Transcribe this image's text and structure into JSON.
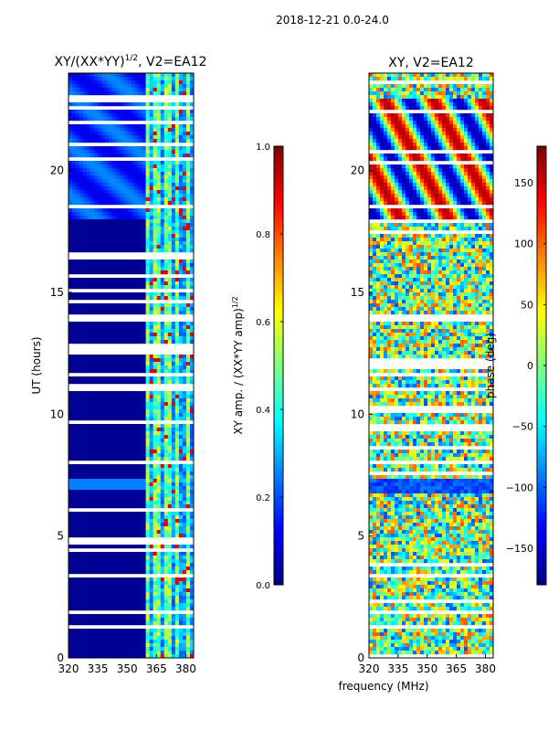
{
  "figure_title": "2018-12-21 0.0-24.0",
  "shared_xlabel": "frequency (MHz)",
  "colors": {
    "jet": [
      "#00007f",
      "#0000ff",
      "#007fff",
      "#00ffff",
      "#7fff7f",
      "#ffff00",
      "#ff7f00",
      "#ff0000",
      "#7f0000"
    ]
  },
  "chart_data": [
    {
      "type": "heatmap",
      "title": "XY/(XX*YY)",
      "title_exponent": "1/2",
      "title_suffix": ", V2=EA12",
      "xlabel": "",
      "ylabel": "UT (hours)",
      "x_ticks": [
        320,
        335,
        350,
        365,
        380
      ],
      "x_tick_labels": [
        "320",
        "335",
        "350",
        "365",
        "380"
      ],
      "xlim": [
        320,
        384
      ],
      "y_ticks": [
        0,
        5,
        10,
        15,
        20
      ],
      "y_tick_labels": [
        "0",
        "5",
        "10",
        "15",
        "20"
      ],
      "ylim": [
        0,
        24
      ],
      "colorbar": {
        "label": "XY amp. / (XX*YY amp)",
        "label_exponent": "1/2",
        "range": [
          0.0,
          1.0
        ],
        "ticks": [
          0.0,
          0.2,
          0.4,
          0.6,
          0.8,
          1.0
        ],
        "tick_labels": [
          "0.0",
          "0.2",
          "0.4",
          "0.6",
          "0.8",
          "1.0"
        ]
      }
    },
    {
      "type": "heatmap",
      "title": "XY, V2=EA12",
      "xlabel": "frequency (MHz)",
      "ylabel": "",
      "x_ticks": [
        320,
        335,
        350,
        365,
        380
      ],
      "x_tick_labels": [
        "320",
        "335",
        "350",
        "365",
        "380"
      ],
      "xlim": [
        320,
        384
      ],
      "y_ticks": [
        0,
        5,
        10,
        15,
        20
      ],
      "y_tick_labels": [
        "0",
        "5",
        "10",
        "15",
        "20"
      ],
      "ylim": [
        0,
        24
      ],
      "colorbar": {
        "label": "phase (deg)",
        "range": [
          -180,
          180
        ],
        "ticks": [
          -150,
          -100,
          -50,
          0,
          50,
          100,
          150
        ],
        "tick_labels": [
          "−150",
          "−100",
          "−50",
          "0",
          "50",
          "100",
          "150"
        ]
      }
    }
  ]
}
